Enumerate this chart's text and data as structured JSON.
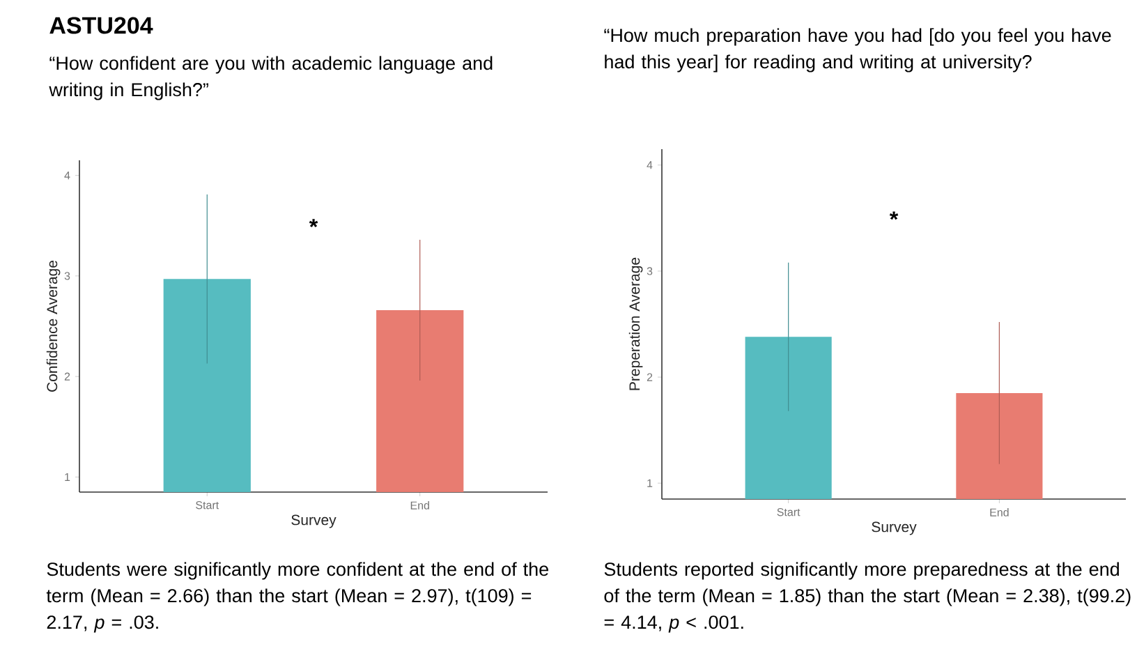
{
  "chart_data": [
    {
      "type": "bar",
      "title": "ASTU204",
      "subtitle": "“How confident are you with academic language and writing in English?”",
      "xlabel": "Survey",
      "ylabel": "Confidence Average",
      "categories": [
        "Start",
        "End"
      ],
      "values": [
        2.97,
        2.66
      ],
      "colors": [
        "#56bcc0",
        "#e87c71"
      ],
      "errors": [
        0.84,
        0.7
      ],
      "ylim": [
        0.85,
        4.15
      ],
      "yticks": [
        1,
        2,
        3,
        4
      ],
      "annotations": [
        "*",
        "Students were significantly more confident at the end of the term (Mean = 2.66) than the start (Mean = 2.97),  t(109) = 2.17, *p* = .03."
      ]
    },
    {
      "type": "bar",
      "title": "“How much preparation have you had [do you feel you have had this year] for reading and writing at university?",
      "xlabel": "Survey",
      "ylabel": "Preperation Average",
      "categories": [
        "Start",
        "End"
      ],
      "values": [
        2.38,
        1.85
      ],
      "colors": [
        "#56bcc0",
        "#e87c71"
      ],
      "errors": [
        0.7,
        0.67
      ],
      "ylim": [
        0.85,
        4.15
      ],
      "yticks": [
        1,
        2,
        3,
        4
      ],
      "annotations": [
        "*",
        "Students reported significantly more preparedness at the end of the term (Mean = 1.85) than the start (Mean = 2.38),  t(99.2) = 4.14, *p* < .001."
      ]
    }
  ]
}
